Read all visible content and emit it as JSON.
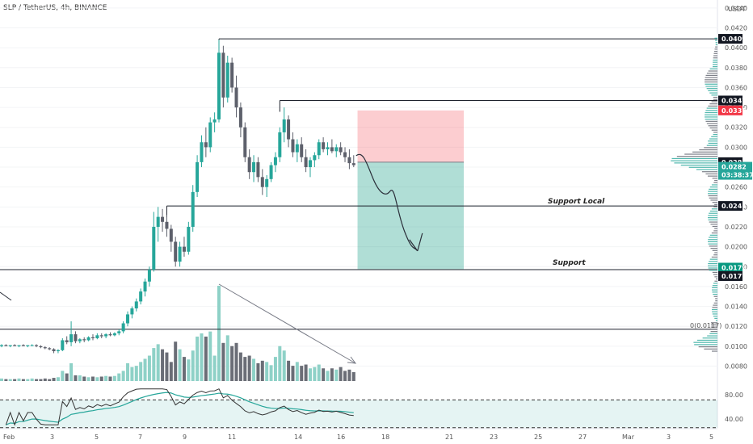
{
  "header": {
    "title": "SLP / TetherUS, 4h, BINANCE",
    "currency": "USDT"
  },
  "chart_data": [
    {
      "type": "candlestick",
      "title": "SLP / TetherUS, 4h, BINANCE",
      "ylabel": "USDT",
      "ylim": [
        0.0065,
        0.0448
      ],
      "y_ticks": [
        "0.0440",
        "0.0420",
        "0.0400",
        "0.0380",
        "0.0360",
        "0.0340",
        "0.0320",
        "0.0300",
        "0.0280",
        "0.0260",
        "0.0240",
        "0.0220",
        "0.0200",
        "0.0180",
        "0.0160",
        "0.0140",
        "0.0120",
        "0.0100",
        "0.0080"
      ],
      "x_ticks": [
        "Feb",
        "3",
        "5",
        "7",
        "9",
        "11",
        "14",
        "16",
        "18",
        "21",
        "23",
        "25",
        "27",
        "Mar",
        "3",
        "5"
      ],
      "ohlc": [
        [
          0.01,
          0.0102,
          0.0099,
          0.0101
        ],
        [
          0.0101,
          0.0102,
          0.01,
          0.01
        ],
        [
          0.01,
          0.0101,
          0.0099,
          0.0101
        ],
        [
          0.0101,
          0.0102,
          0.01,
          0.01
        ],
        [
          0.01,
          0.0101,
          0.0099,
          0.0101
        ],
        [
          0.0101,
          0.0102,
          0.01,
          0.01
        ],
        [
          0.01,
          0.0101,
          0.0099,
          0.0101
        ],
        [
          0.0101,
          0.0102,
          0.01,
          0.0101
        ],
        [
          0.0101,
          0.0102,
          0.0099,
          0.01
        ],
        [
          0.01,
          0.0101,
          0.0098,
          0.0099
        ],
        [
          0.0099,
          0.01,
          0.0097,
          0.0098
        ],
        [
          0.0098,
          0.0099,
          0.0096,
          0.0097
        ],
        [
          0.0097,
          0.0098,
          0.0093,
          0.0095
        ],
        [
          0.0095,
          0.0097,
          0.0093,
          0.0096
        ],
        [
          0.0096,
          0.0108,
          0.0095,
          0.0106
        ],
        [
          0.0106,
          0.011,
          0.0102,
          0.0104
        ],
        [
          0.0104,
          0.0125,
          0.01,
          0.0112
        ],
        [
          0.0112,
          0.0115,
          0.0103,
          0.0105
        ],
        [
          0.0105,
          0.0108,
          0.0103,
          0.0107
        ],
        [
          0.0107,
          0.0109,
          0.0104,
          0.0106
        ],
        [
          0.0106,
          0.011,
          0.0105,
          0.0109
        ],
        [
          0.0109,
          0.0112,
          0.0106,
          0.0108
        ],
        [
          0.0108,
          0.0113,
          0.0107,
          0.0111
        ],
        [
          0.0111,
          0.0113,
          0.0108,
          0.011
        ],
        [
          0.011,
          0.0113,
          0.0108,
          0.0112
        ],
        [
          0.0112,
          0.0114,
          0.011,
          0.0111
        ],
        [
          0.0111,
          0.0114,
          0.011,
          0.0113
        ],
        [
          0.0113,
          0.0117,
          0.0111,
          0.0115
        ],
        [
          0.0115,
          0.0125,
          0.0113,
          0.0123
        ],
        [
          0.0123,
          0.0135,
          0.012,
          0.0132
        ],
        [
          0.0132,
          0.014,
          0.0128,
          0.0138
        ],
        [
          0.0138,
          0.0148,
          0.0135,
          0.0145
        ],
        [
          0.0145,
          0.0158,
          0.0142,
          0.0155
        ],
        [
          0.0155,
          0.0168,
          0.015,
          0.0165
        ],
        [
          0.0165,
          0.018,
          0.016,
          0.0177
        ],
        [
          0.0177,
          0.0235,
          0.0175,
          0.022
        ],
        [
          0.022,
          0.024,
          0.0205,
          0.023
        ],
        [
          0.023,
          0.0238,
          0.0215,
          0.0225
        ],
        [
          0.0225,
          0.0232,
          0.021,
          0.0218
        ],
        [
          0.0218,
          0.0222,
          0.0195,
          0.0205
        ],
        [
          0.0205,
          0.021,
          0.018,
          0.0185
        ],
        [
          0.0185,
          0.0205,
          0.018,
          0.02
        ],
        [
          0.02,
          0.021,
          0.019,
          0.0195
        ],
        [
          0.0195,
          0.0225,
          0.0192,
          0.022
        ],
        [
          0.022,
          0.0262,
          0.0215,
          0.0255
        ],
        [
          0.0255,
          0.0292,
          0.025,
          0.0285
        ],
        [
          0.0285,
          0.0312,
          0.028,
          0.0305
        ],
        [
          0.0305,
          0.032,
          0.029,
          0.03
        ],
        [
          0.03,
          0.033,
          0.0295,
          0.0325
        ],
        [
          0.0325,
          0.0335,
          0.0315,
          0.0328
        ],
        [
          0.0328,
          0.0408,
          0.0325,
          0.0395
        ],
        [
          0.0395,
          0.0402,
          0.034,
          0.035
        ],
        [
          0.035,
          0.0392,
          0.0345,
          0.0385
        ],
        [
          0.0385,
          0.039,
          0.0355,
          0.036
        ],
        [
          0.036,
          0.0372,
          0.033,
          0.034
        ],
        [
          0.034,
          0.0345,
          0.031,
          0.032
        ],
        [
          0.032,
          0.0325,
          0.0285,
          0.029
        ],
        [
          0.029,
          0.0298,
          0.0268,
          0.0275
        ],
        [
          0.0275,
          0.0292,
          0.0265,
          0.0285
        ],
        [
          0.0285,
          0.029,
          0.0265,
          0.027
        ],
        [
          0.027,
          0.0278,
          0.0252,
          0.026
        ],
        [
          0.026,
          0.0272,
          0.025,
          0.0268
        ],
        [
          0.0268,
          0.0285,
          0.0265,
          0.0282
        ],
        [
          0.0282,
          0.0295,
          0.0275,
          0.029
        ],
        [
          0.029,
          0.032,
          0.0285,
          0.0315
        ],
        [
          0.0315,
          0.034,
          0.0305,
          0.0328
        ],
        [
          0.0328,
          0.0332,
          0.03,
          0.0308
        ],
        [
          0.0308,
          0.0315,
          0.029,
          0.0295
        ],
        [
          0.0295,
          0.0308,
          0.0285,
          0.0303
        ],
        [
          0.0303,
          0.031,
          0.0285,
          0.029
        ],
        [
          0.029,
          0.0298,
          0.0275,
          0.028
        ],
        [
          0.028,
          0.029,
          0.027,
          0.0287
        ],
        [
          0.0287,
          0.0295,
          0.028,
          0.0292
        ],
        [
          0.0292,
          0.0308,
          0.0288,
          0.0305
        ],
        [
          0.0305,
          0.031,
          0.0295,
          0.0298
        ],
        [
          0.0298,
          0.0305,
          0.0292,
          0.03
        ],
        [
          0.03,
          0.0308,
          0.0294,
          0.0296
        ],
        [
          0.0296,
          0.0303,
          0.029,
          0.03
        ],
        [
          0.03,
          0.0305,
          0.0292,
          0.0295
        ],
        [
          0.0295,
          0.03,
          0.0285,
          0.029
        ],
        [
          0.029,
          0.0298,
          0.0278,
          0.0284
        ],
        [
          0.0284,
          0.0292,
          0.028,
          0.0282
        ]
      ],
      "volume": [
        4,
        3,
        3,
        3,
        4,
        3,
        3,
        4,
        3,
        3,
        4,
        3,
        5,
        6,
        16,
        12,
        28,
        9,
        9,
        7,
        6,
        7,
        6,
        7,
        8,
        7,
        8,
        12,
        16,
        28,
        22,
        24,
        30,
        35,
        40,
        52,
        58,
        50,
        45,
        30,
        62,
        50,
        38,
        34,
        48,
        70,
        75,
        70,
        78,
        40,
        150,
        60,
        72,
        55,
        60,
        45,
        38,
        40,
        35,
        28,
        32,
        30,
        25,
        38,
        55,
        48,
        32,
        24,
        30,
        24,
        26,
        20,
        22,
        26,
        20,
        16,
        20,
        18,
        22,
        16,
        18,
        14
      ]
    },
    {
      "type": "line",
      "title": "RSI",
      "ylim": [
        32,
        88
      ],
      "y_ticks": [
        "80.00",
        "40.00"
      ],
      "bands": [
        70,
        30
      ]
    }
  ],
  "markers": {
    "last_price": "0.0282",
    "countdown": "03:38:37",
    "high_line": "0.0409",
    "resistance": "0.0347",
    "stop_price": "0.0337",
    "entry": "0.0285",
    "support_local": "0.0241",
    "support_upper": "0.0179",
    "support": "0.0177"
  },
  "annotations": {
    "support_local": "Support Local",
    "support": "Support",
    "fib": "0(0.0117)"
  },
  "colors": {
    "up": "#26a69a",
    "down": "#5d606b",
    "vol_up": "#8ed1c7",
    "vol_down": "#6a6d76",
    "stop_zone": "rgba(242,54,69,0.25)",
    "target_zone": "rgba(8,153,129,0.32)",
    "level_line": "#1e222d",
    "rsi": "#333333",
    "rsi_ma": "#26a69a"
  }
}
